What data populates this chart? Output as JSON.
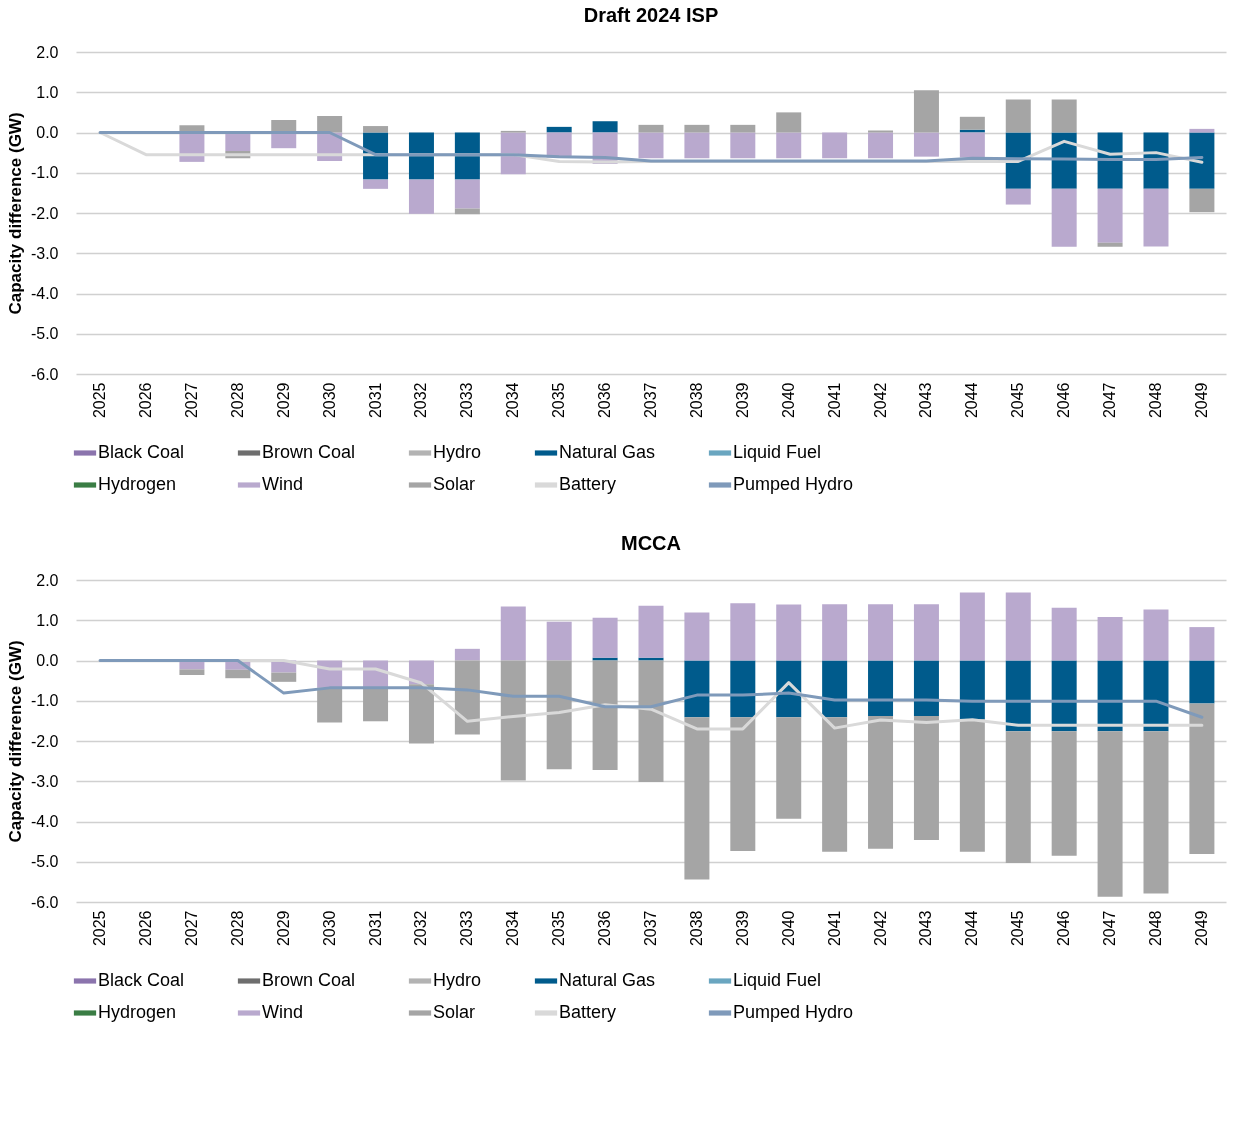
{
  "chart_data": [
    {
      "type": "bar",
      "title": "Draft 2024 ISP",
      "ylabel": "Capacity difference (GW)",
      "stacked": true,
      "grid": "y",
      "legend": "bottom",
      "categories": [
        "2025",
        "2026",
        "2027",
        "2028",
        "2029",
        "2030",
        "2031",
        "2032",
        "2033",
        "2034",
        "2035",
        "2036",
        "2037",
        "2038",
        "2039",
        "2040",
        "2041",
        "2042",
        "2043",
        "2044",
        "2045",
        "2046",
        "2047",
        "2048",
        "2049"
      ],
      "ylim": [
        -6,
        2
      ],
      "yticks": [
        {
          "value": -6,
          "label": "-6.0"
        },
        {
          "value": -5,
          "label": "-5.0"
        },
        {
          "value": -4,
          "label": "-4.0"
        },
        {
          "value": -3,
          "label": "-3.0"
        },
        {
          "value": -2,
          "label": "-2.0"
        },
        {
          "value": -1,
          "label": "-1.0"
        },
        {
          "value": 0,
          "label": "0.0"
        },
        {
          "value": 1,
          "label": "1.0"
        },
        {
          "value": 2,
          "label": "2.0"
        }
      ],
      "series": [
        {
          "name": "Black Coal",
          "color": "#8b74ad",
          "values": [
            null,
            null,
            null,
            null,
            null,
            null,
            null,
            null,
            null,
            null,
            null,
            null,
            null,
            null,
            null,
            null,
            null,
            null,
            null,
            null,
            null,
            null,
            null,
            null,
            null
          ]
        },
        {
          "name": "Brown Coal",
          "color": "#6e6e6e",
          "values": [
            null,
            null,
            null,
            null,
            null,
            null,
            null,
            null,
            null,
            null,
            null,
            null,
            null,
            null,
            null,
            null,
            null,
            null,
            null,
            null,
            null,
            null,
            null,
            null,
            null
          ]
        },
        {
          "name": "Hydro",
          "color": "#b3b3b3",
          "values": [
            null,
            null,
            null,
            null,
            null,
            null,
            null,
            null,
            null,
            null,
            null,
            null,
            null,
            null,
            null,
            null,
            null,
            null,
            null,
            null,
            null,
            null,
            null,
            null,
            null
          ]
        },
        {
          "name": "Natural Gas",
          "color": "#005b8c",
          "values": [
            null,
            null,
            null,
            null,
            null,
            null,
            -1.17,
            -1.17,
            -1.17,
            null,
            0.14,
            0.28,
            null,
            null,
            null,
            null,
            null,
            null,
            null,
            0.07,
            -1.4,
            -1.4,
            -1.4,
            -1.4,
            -1.4
          ]
        },
        {
          "name": "Liquid Fuel",
          "color": "#6aa6c0",
          "values": [
            null,
            null,
            null,
            null,
            null,
            null,
            null,
            null,
            null,
            null,
            null,
            null,
            null,
            null,
            null,
            null,
            null,
            null,
            null,
            null,
            null,
            null,
            null,
            null,
            null
          ]
        },
        {
          "name": "Hydrogen",
          "color": "#3a7d44",
          "values": [
            null,
            null,
            null,
            null,
            null,
            null,
            null,
            null,
            null,
            null,
            null,
            null,
            null,
            null,
            null,
            null,
            null,
            null,
            null,
            null,
            null,
            null,
            null,
            null,
            null
          ]
        },
        {
          "name": "Wind",
          "color": "#b9a9ce",
          "values": [
            null,
            null,
            -0.73,
            -0.46,
            -0.39,
            -0.71,
            -0.23,
            -0.85,
            -0.72,
            -1.04,
            -0.62,
            -0.78,
            -0.64,
            -0.64,
            -0.64,
            -0.64,
            -0.64,
            -0.64,
            -0.6,
            -0.62,
            -0.39,
            -1.44,
            -1.34,
            -1.43,
            0.09
          ]
        },
        {
          "name": "Solar",
          "color": "#a5a5a5",
          "values": [
            null,
            null,
            0.18,
            -0.18,
            0.31,
            0.41,
            0.16,
            null,
            -0.14,
            0.04,
            null,
            null,
            0.19,
            0.19,
            0.19,
            0.5,
            null,
            0.05,
            1.05,
            0.32,
            0.82,
            0.82,
            -0.1,
            null,
            -0.58
          ]
        },
        {
          "name": "Battery",
          "type": "line",
          "color": "#d9d9d9",
          "values": [
            0,
            -0.55,
            -0.55,
            -0.55,
            -0.55,
            -0.55,
            -0.55,
            -0.55,
            -0.55,
            -0.55,
            -0.72,
            -0.73,
            -0.72,
            -0.72,
            -0.72,
            -0.72,
            -0.72,
            -0.72,
            -0.72,
            -0.72,
            -0.72,
            -0.22,
            -0.54,
            -0.5,
            -0.74
          ]
        },
        {
          "name": "Pumped Hydro",
          "type": "line",
          "color": "#7f9aba",
          "values": [
            0,
            0,
            0,
            0,
            0,
            0,
            -0.55,
            -0.55,
            -0.55,
            -0.55,
            -0.6,
            -0.62,
            -0.71,
            -0.71,
            -0.71,
            -0.71,
            -0.71,
            -0.71,
            -0.71,
            -0.64,
            -0.65,
            -0.66,
            -0.67,
            -0.67,
            -0.62
          ]
        }
      ]
    },
    {
      "type": "bar",
      "title": "MCCA",
      "ylabel": "Capacity difference (GW)",
      "stacked": true,
      "grid": "y",
      "legend": "bottom",
      "categories": [
        "2025",
        "2026",
        "2027",
        "2028",
        "2029",
        "2030",
        "2031",
        "2032",
        "2033",
        "2034",
        "2035",
        "2036",
        "2037",
        "2038",
        "2039",
        "2040",
        "2041",
        "2042",
        "2043",
        "2044",
        "2045",
        "2046",
        "2047",
        "2048",
        "2049"
      ],
      "ylim": [
        -6,
        2
      ],
      "yticks": [
        {
          "value": -6,
          "label": "-6.0"
        },
        {
          "value": -5,
          "label": "-5.0"
        },
        {
          "value": -4,
          "label": "-4.0"
        },
        {
          "value": -3,
          "label": "-3.0"
        },
        {
          "value": -2,
          "label": "-2.0"
        },
        {
          "value": -1,
          "label": "-1.0"
        },
        {
          "value": 0,
          "label": "0.0"
        },
        {
          "value": 1,
          "label": "1.0"
        },
        {
          "value": 2,
          "label": "2.0"
        }
      ],
      "series": [
        {
          "name": "Black Coal",
          "color": "#8b74ad",
          "values": [
            null,
            null,
            null,
            null,
            null,
            null,
            null,
            null,
            null,
            null,
            null,
            null,
            null,
            null,
            null,
            null,
            null,
            null,
            null,
            null,
            null,
            null,
            null,
            null,
            null
          ]
        },
        {
          "name": "Brown Coal",
          "color": "#6e6e6e",
          "values": [
            null,
            null,
            null,
            null,
            null,
            null,
            null,
            null,
            null,
            null,
            null,
            null,
            null,
            null,
            null,
            null,
            null,
            null,
            null,
            null,
            null,
            null,
            null,
            null,
            null
          ]
        },
        {
          "name": "Hydro",
          "color": "#b3b3b3",
          "values": [
            null,
            null,
            null,
            null,
            null,
            null,
            null,
            null,
            null,
            null,
            null,
            null,
            null,
            null,
            null,
            null,
            null,
            null,
            null,
            null,
            null,
            null,
            null,
            null,
            null
          ]
        },
        {
          "name": "Natural Gas",
          "color": "#005b8c",
          "values": [
            null,
            null,
            null,
            null,
            null,
            null,
            null,
            null,
            null,
            null,
            null,
            0.07,
            0.07,
            -1.41,
            -1.41,
            -1.41,
            -1.41,
            -1.38,
            -1.38,
            -1.46,
            -1.76,
            -1.76,
            -1.76,
            -1.76,
            -1.07
          ]
        },
        {
          "name": "Liquid Fuel",
          "color": "#6aa6c0",
          "values": [
            null,
            null,
            null,
            null,
            null,
            null,
            null,
            null,
            null,
            null,
            null,
            null,
            null,
            null,
            null,
            null,
            null,
            null,
            null,
            null,
            null,
            null,
            null,
            null,
            null
          ]
        },
        {
          "name": "Hydrogen",
          "color": "#3a7d44",
          "values": [
            null,
            null,
            null,
            null,
            null,
            null,
            null,
            null,
            null,
            null,
            null,
            null,
            null,
            null,
            null,
            null,
            null,
            null,
            null,
            null,
            null,
            null,
            null,
            null,
            null
          ]
        },
        {
          "name": "Wind",
          "color": "#b9a9ce",
          "values": [
            null,
            null,
            -0.22,
            -0.23,
            -0.3,
            -0.68,
            -0.68,
            -0.59,
            0.29,
            1.34,
            0.96,
            0.99,
            1.29,
            1.19,
            1.42,
            1.39,
            1.4,
            1.4,
            1.4,
            1.69,
            1.69,
            1.31,
            1.08,
            1.27,
            0.83
          ]
        },
        {
          "name": "Solar",
          "color": "#a5a5a5",
          "values": [
            null,
            null,
            -0.14,
            -0.21,
            -0.23,
            -0.86,
            -0.83,
            -1.47,
            -1.84,
            -2.98,
            -2.7,
            -2.72,
            -3.02,
            -4.03,
            -3.32,
            -2.52,
            -3.34,
            -3.3,
            -3.08,
            -3.29,
            -3.27,
            -3.09,
            -4.11,
            -4.03,
            -3.74
          ]
        },
        {
          "name": "Battery",
          "type": "line",
          "color": "#d9d9d9",
          "values": [
            0,
            0,
            0,
            0,
            0,
            -0.21,
            -0.21,
            -0.56,
            -1.51,
            -1.39,
            -1.29,
            -1.1,
            -1.21,
            -1.7,
            -1.7,
            -0.55,
            -1.68,
            -1.48,
            -1.54,
            -1.47,
            -1.61,
            -1.61,
            -1.61,
            -1.61,
            -1.61
          ]
        },
        {
          "name": "Pumped Hydro",
          "type": "line",
          "color": "#7f9aba",
          "values": [
            0,
            0,
            0,
            0,
            -0.81,
            -0.68,
            -0.68,
            -0.68,
            -0.73,
            -0.89,
            -0.89,
            -1.15,
            -1.15,
            -0.86,
            -0.86,
            -0.81,
            -0.98,
            -0.98,
            -0.98,
            -1.01,
            -1.01,
            -1.01,
            -1.01,
            -1.01,
            -1.41
          ]
        }
      ]
    }
  ]
}
